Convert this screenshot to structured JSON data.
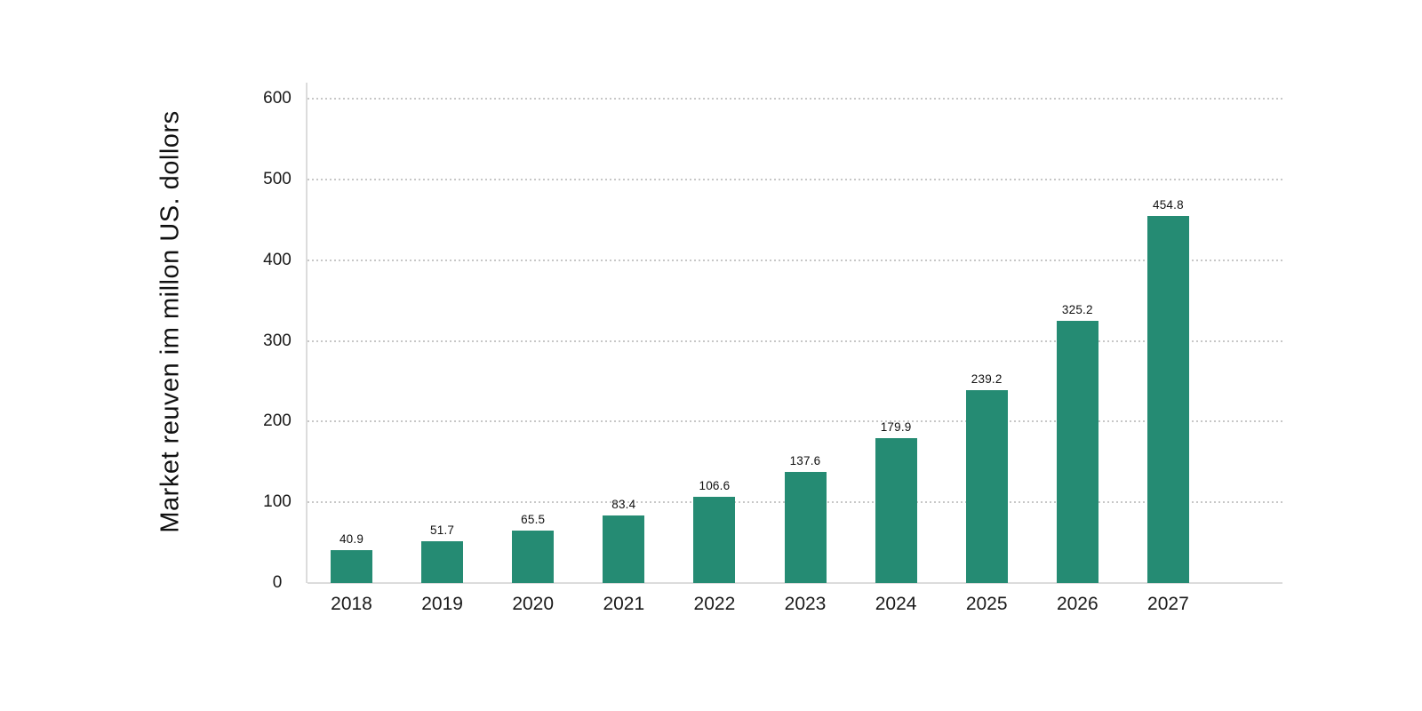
{
  "chart_data": {
    "type": "bar",
    "title": "",
    "categories": [
      "2018",
      "2019",
      "2020",
      "2021",
      "2022",
      "2023",
      "2024",
      "2025",
      "2026",
      "2027"
    ],
    "values": [
      40.9,
      51.7,
      65.5,
      83.4,
      106.6,
      137.6,
      179.9,
      239.2,
      325.2,
      454.8
    ],
    "data_labels": [
      "40.9",
      "51.7",
      "65.5",
      "83.4",
      "106.6",
      "137.6",
      "179.9",
      "239.2",
      "325.2",
      "454.8"
    ],
    "xlabel": "",
    "ylabel": "Market reuven im millon US. dollors",
    "ylim": [
      0,
      600
    ],
    "yticks": [
      0,
      100,
      200,
      300,
      400,
      500,
      600
    ],
    "grid": "horizontal-dotted",
    "legend_position": "none",
    "colors": {
      "bar": "#258b73",
      "gridline": "#c7c7c7",
      "axis_line": "#dcdcdc",
      "text": "#1a1a1a",
      "background": "#ffffff"
    }
  }
}
